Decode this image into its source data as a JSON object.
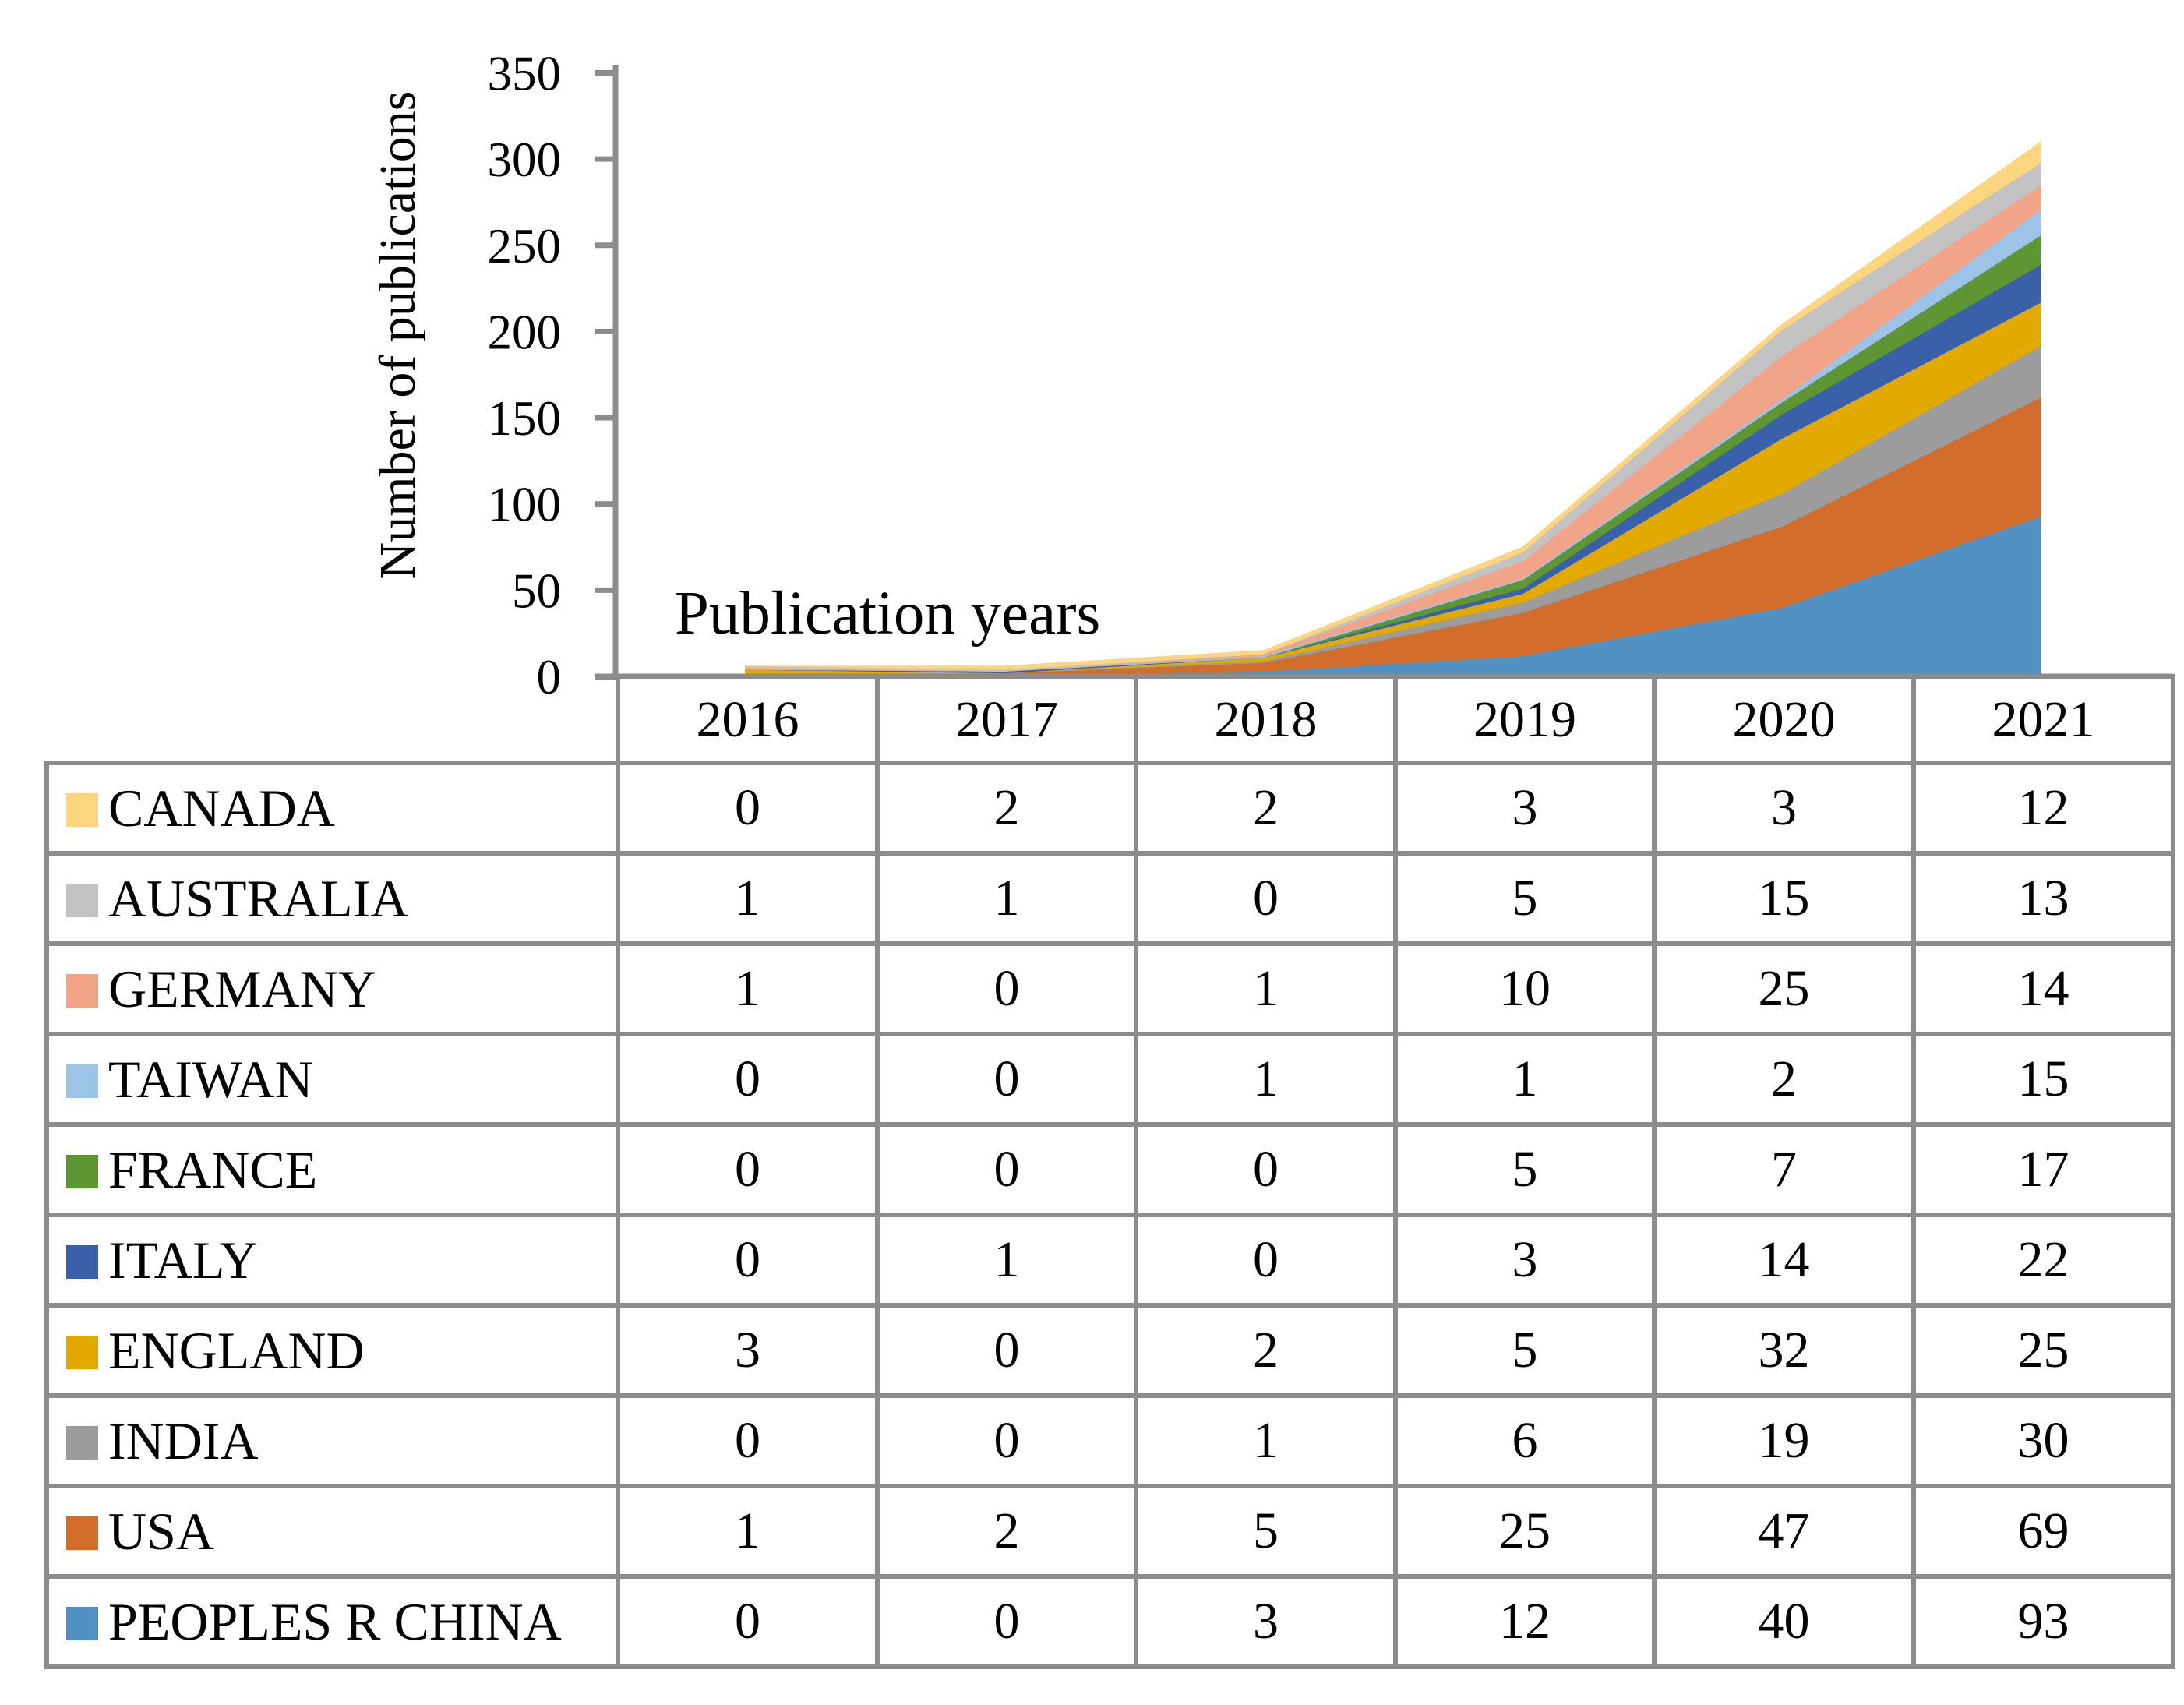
{
  "chart_data": {
    "type": "area",
    "stacked": true,
    "title": "",
    "xlabel": "Publication years",
    "ylabel": "Number of publications",
    "categories": [
      "2016",
      "2017",
      "2018",
      "2019",
      "2020",
      "2021"
    ],
    "series": [
      {
        "name": "CANADA",
        "color": "#FCD57F",
        "values": [
          0,
          2,
          2,
          3,
          3,
          12
        ]
      },
      {
        "name": "AUSTRALIA",
        "color": "#C3C3C3",
        "values": [
          1,
          1,
          0,
          5,
          15,
          13
        ]
      },
      {
        "name": "GERMANY",
        "color": "#F2A488",
        "values": [
          1,
          0,
          1,
          10,
          25,
          14
        ]
      },
      {
        "name": "TAIWAN",
        "color": "#9DC3E6",
        "values": [
          0,
          0,
          1,
          1,
          2,
          15
        ]
      },
      {
        "name": "FRANCE",
        "color": "#5E9634",
        "values": [
          0,
          0,
          0,
          5,
          7,
          17
        ]
      },
      {
        "name": "ITALY",
        "color": "#3B60AA",
        "values": [
          0,
          1,
          0,
          3,
          14,
          22
        ]
      },
      {
        "name": "ENGLAND",
        "color": "#E2A900",
        "values": [
          3,
          0,
          2,
          5,
          32,
          25
        ]
      },
      {
        "name": "INDIA",
        "color": "#9C9C9C",
        "values": [
          0,
          0,
          1,
          6,
          19,
          30
        ]
      },
      {
        "name": "USA",
        "color": "#D26D2C",
        "values": [
          1,
          2,
          5,
          25,
          47,
          69
        ]
      },
      {
        "name": "PEOPLES R CHINA",
        "color": "#5190C0",
        "values": [
          0,
          0,
          3,
          12,
          40,
          93
        ]
      }
    ],
    "stack_order": "bottom-to-top is reverse of series list (PEOPLES R CHINA at bottom, CANADA on top)",
    "y_ticks": [
      0,
      50,
      100,
      150,
      200,
      250,
      300,
      350
    ],
    "ylim": [
      0,
      350
    ],
    "grid": false,
    "legend_position": "left column of data table below chart",
    "axis_color": "#8C8C8C"
  }
}
